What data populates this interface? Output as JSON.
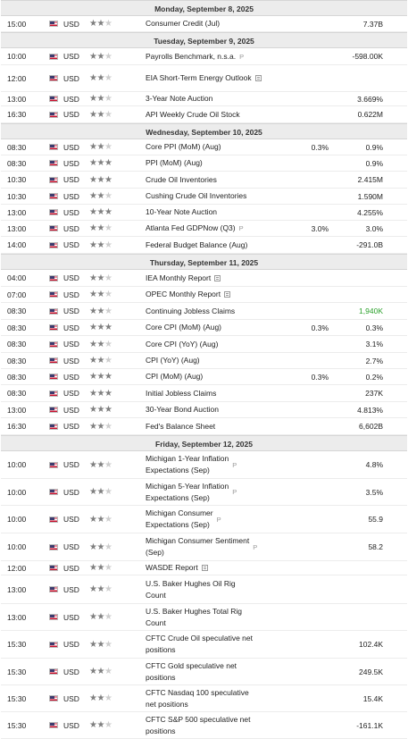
{
  "calendar": [
    {
      "date": "Monday, September 8, 2025",
      "events": [
        {
          "time": "15:00",
          "currency": "USD",
          "importance": 2,
          "name": "Consumer Credit (Jul)",
          "consensus": "",
          "actual": "7.37B"
        }
      ]
    },
    {
      "date": "Tuesday, September 9, 2025",
      "events": [
        {
          "time": "10:00",
          "currency": "USD",
          "importance": 2,
          "name": "Payrolls Benchmark, n.s.a.",
          "prelim": "P",
          "consensus": "",
          "actual": "-598.00K"
        },
        {
          "time": "12:00",
          "currency": "USD",
          "importance": 2,
          "name": "EIA Short-Term Energy Outlook",
          "report": true,
          "consensus": "",
          "actual": ""
        },
        {
          "time": "13:00",
          "currency": "USD",
          "importance": 2,
          "name": "3-Year Note Auction",
          "consensus": "",
          "actual": "3.669%"
        },
        {
          "time": "16:30",
          "currency": "USD",
          "importance": 2,
          "name": "API Weekly Crude Oil Stock",
          "consensus": "",
          "actual": "0.622M"
        }
      ]
    },
    {
      "date": "Wednesday, September 10, 2025",
      "events": [
        {
          "time": "08:30",
          "currency": "USD",
          "importance": 2,
          "name": "Core PPI (MoM) (Aug)",
          "consensus": "0.3%",
          "actual": "0.9%"
        },
        {
          "time": "08:30",
          "currency": "USD",
          "importance": 3,
          "name": "PPI (MoM) (Aug)",
          "consensus": "",
          "actual": "0.9%"
        },
        {
          "time": "10:30",
          "currency": "USD",
          "importance": 3,
          "name": "Crude Oil Inventories",
          "consensus": "",
          "actual": "2.415M"
        },
        {
          "time": "10:30",
          "currency": "USD",
          "importance": 2,
          "name": "Cushing Crude Oil Inventories",
          "consensus": "",
          "actual": "1.590M"
        },
        {
          "time": "13:00",
          "currency": "USD",
          "importance": 3,
          "name": "10-Year Note Auction",
          "consensus": "",
          "actual": "4.255%"
        },
        {
          "time": "13:00",
          "currency": "USD",
          "importance": 2,
          "name": "Atlanta Fed GDPNow (Q3)",
          "prelim": "P",
          "consensus": "3.0%",
          "actual": "3.0%"
        },
        {
          "time": "14:00",
          "currency": "USD",
          "importance": 2,
          "name": "Federal Budget Balance (Aug)",
          "consensus": "",
          "actual": "-291.0B"
        }
      ]
    },
    {
      "date": "Thursday, September 11, 2025",
      "events": [
        {
          "time": "04:00",
          "currency": "USD",
          "importance": 2,
          "name": "IEA Monthly Report",
          "report": true,
          "consensus": "",
          "actual": ""
        },
        {
          "time": "07:00",
          "currency": "USD",
          "importance": 2,
          "name": "OPEC Monthly Report",
          "report": true,
          "consensus": "",
          "actual": ""
        },
        {
          "time": "08:30",
          "currency": "USD",
          "importance": 2,
          "name": "Continuing Jobless Claims",
          "consensus": "",
          "actual": "1,940K",
          "actual_color": "green"
        },
        {
          "time": "08:30",
          "currency": "USD",
          "importance": 3,
          "name": "Core CPI (MoM) (Aug)",
          "consensus": "0.3%",
          "actual": "0.3%"
        },
        {
          "time": "08:30",
          "currency": "USD",
          "importance": 2,
          "name": "Core CPI (YoY) (Aug)",
          "consensus": "",
          "actual": "3.1%"
        },
        {
          "time": "08:30",
          "currency": "USD",
          "importance": 2,
          "name": "CPI (YoY) (Aug)",
          "consensus": "",
          "actual": "2.7%"
        },
        {
          "time": "08:30",
          "currency": "USD",
          "importance": 3,
          "name": "CPI (MoM) (Aug)",
          "consensus": "0.3%",
          "actual": "0.2%"
        },
        {
          "time": "08:30",
          "currency": "USD",
          "importance": 3,
          "name": "Initial Jobless Claims",
          "consensus": "",
          "actual": "237K"
        },
        {
          "time": "13:00",
          "currency": "USD",
          "importance": 3,
          "name": "30-Year Bond Auction",
          "consensus": "",
          "actual": "4.813%"
        },
        {
          "time": "16:30",
          "currency": "USD",
          "importance": 2,
          "name": "Fed's Balance Sheet",
          "consensus": "",
          "actual": "6,602B"
        }
      ]
    },
    {
      "date": "Friday, September 12, 2025",
      "events": [
        {
          "time": "10:00",
          "currency": "USD",
          "importance": 2,
          "name": "Michigan 1-Year Inflation Expectations (Sep)",
          "prelim": "P",
          "consensus": "",
          "actual": "4.8%"
        },
        {
          "time": "10:00",
          "currency": "USD",
          "importance": 2,
          "name": "Michigan 5-Year Inflation Expectations (Sep)",
          "prelim": "P",
          "consensus": "",
          "actual": "3.5%"
        },
        {
          "time": "10:00",
          "currency": "USD",
          "importance": 2,
          "name": "Michigan Consumer Expectations (Sep)",
          "prelim": "P",
          "consensus": "",
          "actual": "55.9"
        },
        {
          "time": "10:00",
          "currency": "USD",
          "importance": 2,
          "name": "Michigan Consumer Sentiment (Sep)",
          "prelim": "P",
          "consensus": "",
          "actual": "58.2"
        },
        {
          "time": "12:00",
          "currency": "USD",
          "importance": 2,
          "name": "WASDE Report",
          "report": true,
          "consensus": "",
          "actual": ""
        },
        {
          "time": "13:00",
          "currency": "USD",
          "importance": 2,
          "name": "U.S. Baker Hughes Oil Rig Count",
          "consensus": "",
          "actual": ""
        },
        {
          "time": "13:00",
          "currency": "USD",
          "importance": 2,
          "name": "U.S. Baker Hughes Total Rig Count",
          "consensus": "",
          "actual": ""
        },
        {
          "time": "15:30",
          "currency": "USD",
          "importance": 2,
          "name": "CFTC Crude Oil speculative net positions",
          "consensus": "",
          "actual": "102.4K"
        },
        {
          "time": "15:30",
          "currency": "USD",
          "importance": 2,
          "name": "CFTC Gold speculative net positions",
          "consensus": "",
          "actual": "249.5K"
        },
        {
          "time": "15:30",
          "currency": "USD",
          "importance": 2,
          "name": "CFTC Nasdaq 100 speculative net positions",
          "consensus": "",
          "actual": "15.4K"
        },
        {
          "time": "15:30",
          "currency": "USD",
          "importance": 2,
          "name": "CFTC S&P 500 speculative net positions",
          "consensus": "",
          "actual": "-161.1K"
        }
      ]
    }
  ],
  "icons": {
    "flag": "us-flag-icon",
    "importance": "star-icon",
    "report": "report-icon",
    "preliminary": "preliminary-tag"
  },
  "colors": {
    "positive": "#2aa02a",
    "header_bg": "#ececec",
    "star_on": "#7f7f7f",
    "star_off": "#cdcdcd"
  }
}
